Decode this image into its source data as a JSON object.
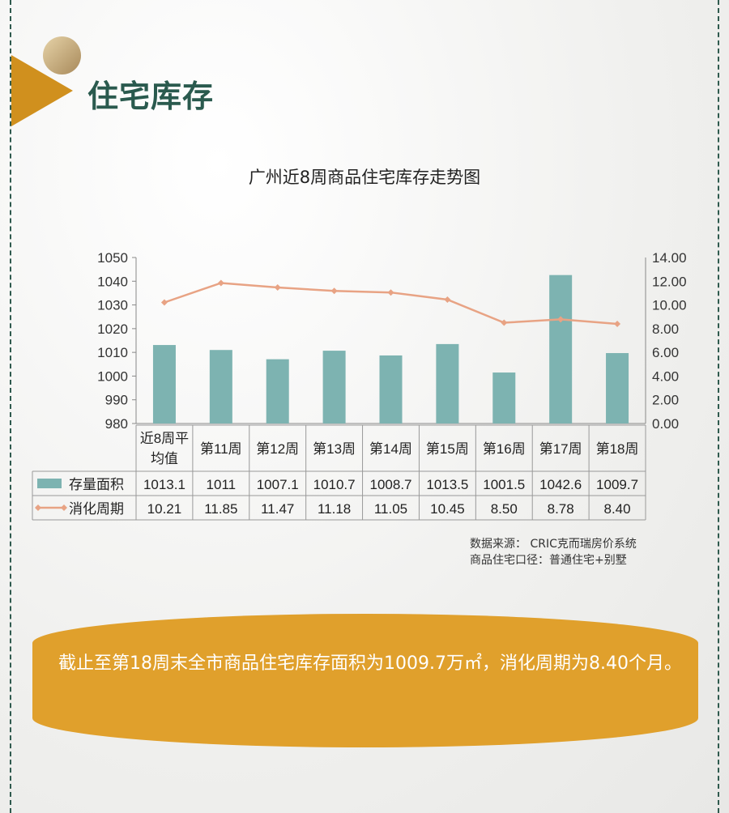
{
  "section_title": "住宅库存",
  "chart_data": {
    "type": "bar+line",
    "title": "广州近8周商品住宅库存走势图",
    "categories": [
      "近8周平均值",
      "第11周",
      "第12周",
      "第13周",
      "第14周",
      "第15周",
      "第16周",
      "第17周",
      "第18周"
    ],
    "category_lines": [
      [
        "近8周平",
        "均值"
      ],
      [
        "第11周"
      ],
      [
        "第12周"
      ],
      [
        "第13周"
      ],
      [
        "第14周"
      ],
      [
        "第15周"
      ],
      [
        "第16周"
      ],
      [
        "第17周"
      ],
      [
        "第18周"
      ]
    ],
    "series": [
      {
        "name": "存量面积",
        "type": "bar",
        "axis": "left",
        "color": "#7db3b1",
        "values": [
          1013.1,
          1011,
          1007.1,
          1010.7,
          1008.7,
          1013.5,
          1001.5,
          1042.6,
          1009.7
        ],
        "labels": [
          "1013.1",
          "1011",
          "1007.1",
          "1010.7",
          "1008.7",
          "1013.5",
          "1001.5",
          "1042.6",
          "1009.7"
        ]
      },
      {
        "name": "消化周期",
        "type": "line",
        "axis": "right",
        "color": "#e8a384",
        "values": [
          10.21,
          11.85,
          11.47,
          11.18,
          11.05,
          10.45,
          8.5,
          8.78,
          8.4
        ],
        "labels": [
          "10.21",
          "11.85",
          "11.47",
          "11.18",
          "11.05",
          "10.45",
          "8.50",
          "8.78",
          "8.40"
        ]
      }
    ],
    "y_left": {
      "range": [
        980,
        1050
      ],
      "ticks": [
        "980",
        "990",
        "1000",
        "1010",
        "1020",
        "1030",
        "1040",
        "1050"
      ]
    },
    "y_right": {
      "range": [
        0,
        14
      ],
      "ticks": [
        "0.00",
        "2.00",
        "4.00",
        "6.00",
        "8.00",
        "10.00",
        "12.00",
        "14.00"
      ]
    },
    "grid": false,
    "legend": "data-table"
  },
  "source_lines": [
    "数据来源： CRIC克而瑞房价系统",
    "商品住宅口径：普通住宅+别墅"
  ],
  "summary": "截止至第18周末全市商品住宅库存面积为1009.7万㎡，消化周期为8.40个月。"
}
